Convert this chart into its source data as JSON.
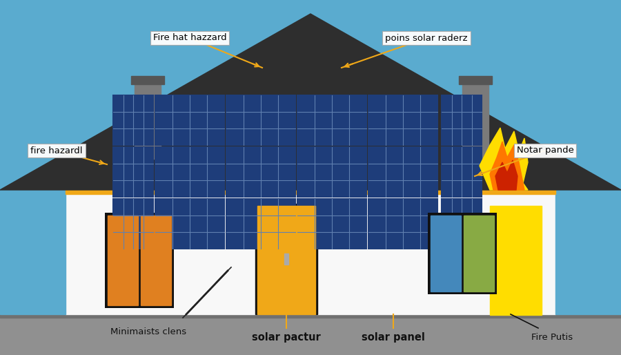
{
  "bg_color": "#5aabcf",
  "house_wall_color": "#f8f8f8",
  "house_side_color": "#5aabcf",
  "roof_color": "#2e2e2e",
  "roof_trim_color": "#f0a818",
  "chimney_color": "#7a7a7a",
  "chimney_cap_color": "#555555",
  "solar_panel_blue": "#1a3060",
  "solar_panel_mid": "#1e3d7a",
  "solar_panel_grid": "#6080b0",
  "solar_panel_frame": "#d0d8e8",
  "door_color": "#f0a818",
  "door_border": "#111111",
  "door_knob": "#aaaaaa",
  "win_left_color": "#e08020",
  "win_left_border": "#111111",
  "win_right_color": "#4488bb",
  "win_right_border": "#111111",
  "ground_color": "#909090",
  "ground_border": "#707070",
  "ann_line_color": "#f0a818",
  "ann_circle_color": "#f0a818",
  "ann_box_color": "#ffffff",
  "flame_yellow": "#ffdd00",
  "flame_orange": "#ff7700",
  "flame_red": "#cc2200",
  "labels": {
    "fire_hat_hazzard": "Fire hat hazzard",
    "poins_solar_raderz": "poins solar raderz",
    "fire_hazardl": "fire hazardl",
    "notar_pande": "Notar pande",
    "minimaists_clens": "Minimaists clens",
    "solar_pactur": "solar pactur",
    "solar_panel": "solar panel",
    "fire_putis": "Fire Putis"
  }
}
